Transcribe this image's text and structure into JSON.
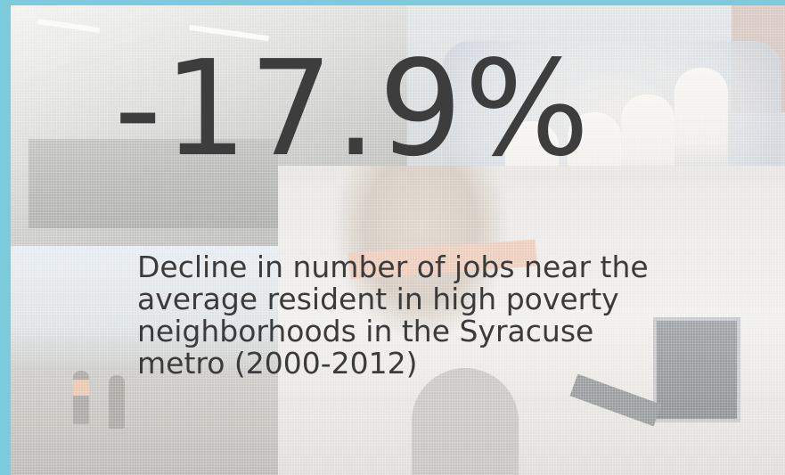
{
  "slide": {
    "statistic": "-17.9%",
    "caption": "Decline in number of jobs near the average resident in high poverty neighborhoods in the Syracuse metro (2000-2012)"
  },
  "background": {
    "frame_color": "#7ccbdc",
    "text_color": "#3d3d3d",
    "photos": [
      "factory-worker-photo",
      "nurses-group-photo",
      "construction-workers-photo",
      "office-worker-photo"
    ]
  }
}
